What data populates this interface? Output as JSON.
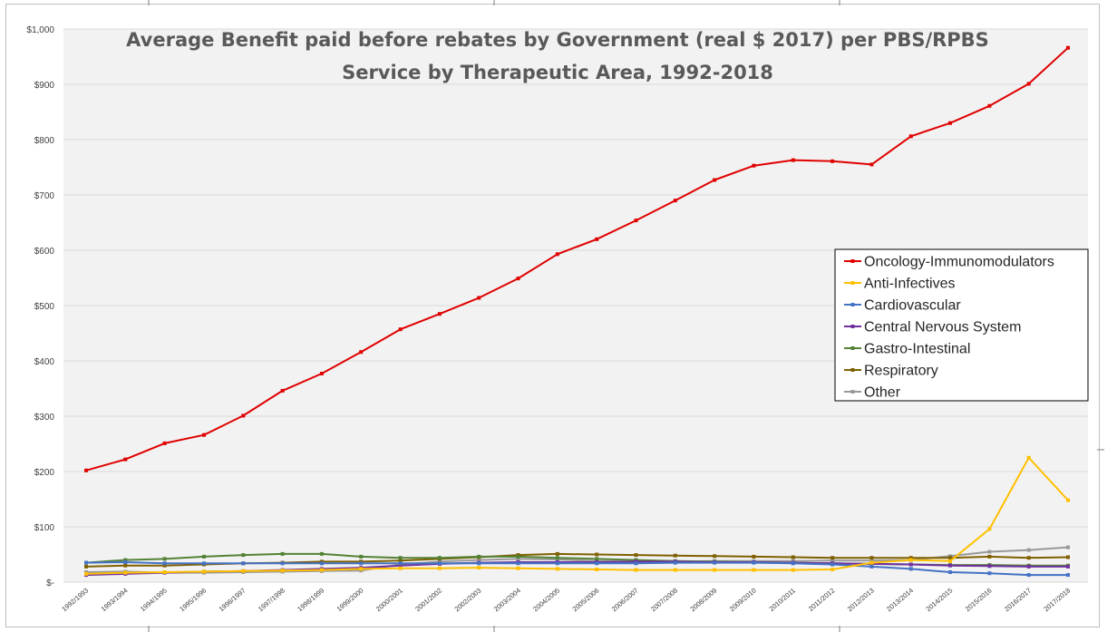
{
  "chart_data": {
    "type": "line",
    "title_lines": [
      "Average Benefit paid before rebates by Government (real $ 2017) per PBS/RPBS",
      "Service by Therapeutic Area, 1992-2018"
    ],
    "xlabel": "",
    "ylabel": "",
    "ylim": [
      0,
      1000
    ],
    "yticks": [
      0,
      100,
      200,
      300,
      400,
      500,
      600,
      700,
      800,
      900,
      1000
    ],
    "ytick_labels": [
      "$-",
      "$100",
      "$200",
      "$300",
      "$400",
      "$500",
      "$600",
      "$700",
      "$800",
      "$900",
      "$1,000"
    ],
    "grid": true,
    "legend_position": "right",
    "categories": [
      "1992/1993",
      "1993/1994",
      "1994/1995",
      "1995/1996",
      "1996/1997",
      "1997/1998",
      "1998/1999",
      "1999/2000",
      "2000/2001",
      "2001/2002",
      "2002/2003",
      "2003/2004",
      "2004/2005",
      "2005/2006",
      "2006/2007",
      "2007/2008",
      "2008/2009",
      "2009/2010",
      "2010/2011",
      "2011/2012",
      "2012/2013",
      "2013/2014",
      "2014/2015",
      "2015/2016",
      "2016/2017",
      "2017/2018"
    ],
    "series": [
      {
        "name": "Oncology-Immunomodulators",
        "color": "#e00000",
        "values": [
          202,
          222,
          251,
          266,
          301,
          346,
          377,
          416,
          457,
          485,
          514,
          549,
          593,
          620,
          654,
          690,
          727,
          753,
          763,
          761,
          755,
          806,
          830,
          861,
          901,
          966
        ]
      },
      {
        "name": "Anti-Infectives",
        "color": "#ffc000",
        "values": [
          15,
          17,
          18,
          19,
          20,
          21,
          22,
          24,
          25,
          25,
          26,
          25,
          24,
          23,
          22,
          22,
          22,
          22,
          22,
          23,
          35,
          40,
          38,
          96,
          225,
          148
        ]
      },
      {
        "name": "Cardiovascular",
        "color": "#4472c4",
        "values": [
          35,
          36,
          34,
          34,
          34,
          34,
          34,
          34,
          34,
          34,
          34,
          34,
          34,
          34,
          34,
          35,
          35,
          35,
          34,
          32,
          28,
          24,
          18,
          16,
          13,
          13
        ]
      },
      {
        "name": "Central Nervous System",
        "color": "#7030a0",
        "values": [
          13,
          15,
          17,
          19,
          20,
          22,
          24,
          26,
          30,
          33,
          35,
          36,
          36,
          36,
          37,
          37,
          36,
          36,
          35,
          34,
          33,
          32,
          30,
          29,
          28,
          28
        ]
      },
      {
        "name": "Gastro-Intestinal",
        "color": "#548235",
        "values": [
          35,
          40,
          42,
          46,
          49,
          51,
          51,
          46,
          44,
          44,
          46,
          46,
          44,
          42,
          40,
          38,
          37,
          36,
          35,
          34,
          33,
          32,
          31,
          31,
          30,
          30
        ]
      },
      {
        "name": "Respiratory",
        "color": "#7f6000",
        "values": [
          28,
          30,
          30,
          32,
          34,
          35,
          37,
          37,
          39,
          42,
          45,
          49,
          51,
          50,
          49,
          48,
          47,
          46,
          45,
          44,
          44,
          44,
          44,
          46,
          44,
          45
        ]
      },
      {
        "name": "Other",
        "color": "#999999",
        "values": [
          18,
          19,
          17,
          17,
          18,
          19,
          20,
          21,
          32,
          37,
          40,
          42,
          41,
          38,
          37,
          37,
          38,
          38,
          38,
          39,
          39,
          40,
          47,
          55,
          58,
          63
        ]
      }
    ]
  }
}
